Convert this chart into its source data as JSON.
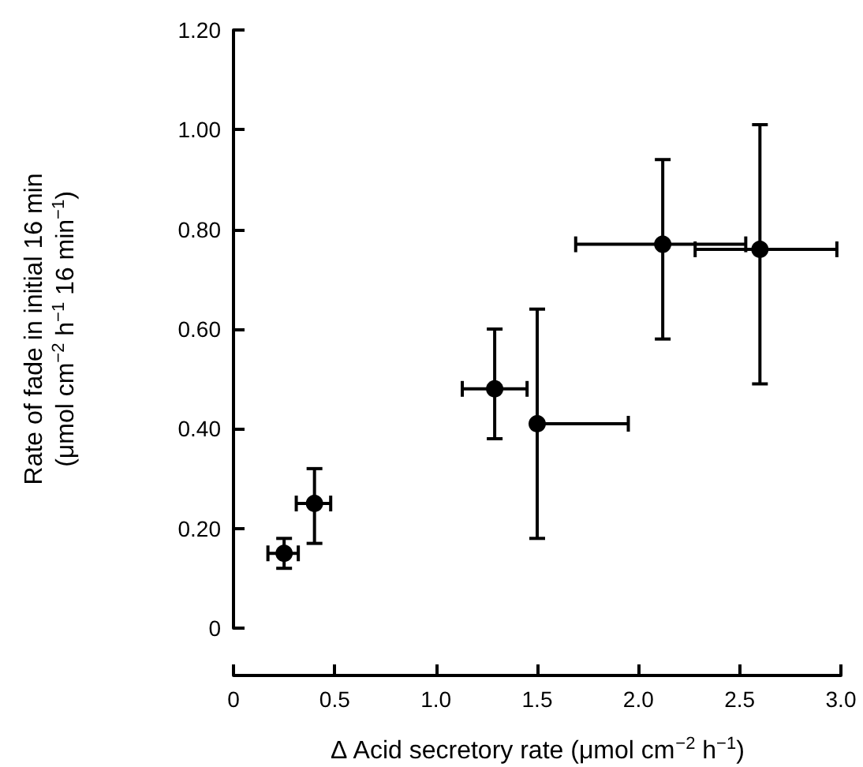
{
  "chart_data": {
    "type": "scatter",
    "xlabel": "Δ Acid secretory rate (μmol cm$^{−2}$ h$^{−1}$)",
    "ylabel": "Rate of fade in initial 16 min\n(μmol cm$^{−2}$ h$^{−1}$ 16 min$^{−1}$)",
    "series": [
      {
        "color": "#000000",
        "x": [
          0.25,
          0.4,
          1.29,
          1.5,
          2.12,
          2.6
        ],
        "values": [
          0.15,
          0.25,
          0.48,
          0.41,
          0.77,
          0.76
        ],
        "errors": [
          [
            0.12,
            0.18
          ],
          [
            0.17,
            0.32
          ],
          [
            0.38,
            0.6
          ],
          [
            0.18,
            0.64
          ],
          [
            0.58,
            0.94
          ],
          [
            0.49,
            1.01
          ]
        ],
        "xerrors": [
          [
            0.17,
            0.32
          ],
          [
            0.31,
            0.48
          ],
          [
            1.13,
            1.45
          ],
          [
            1.5,
            1.95
          ],
          [
            1.69,
            2.53
          ],
          [
            2.28,
            2.98
          ]
        ]
      }
    ],
    "xlim": [
      0,
      3
    ],
    "xticks": [
      0,
      {
        "value": 0.5,
        "label": "0.5"
      },
      {
        "value": 1,
        "label": "1.0"
      },
      {
        "value": 1.5,
        "label": "1.5"
      },
      {
        "value": 2,
        "label": "2.0"
      },
      {
        "value": 2.5,
        "label": "2.5"
      },
      {
        "value": 3,
        "label": "3.0"
      }
    ],
    "ylim": [
      0,
      1.2
    ],
    "yticks": [
      0,
      {
        "value": 0.2,
        "label": "0.20"
      },
      {
        "value": 0.4,
        "label": "0.40"
      },
      {
        "value": 0.6,
        "label": "0.60"
      },
      {
        "value": 0.8,
        "label": "0.80"
      },
      {
        "value": 1,
        "label": "1.00"
      },
      {
        "value": 1.2,
        "label": "1.20"
      }
    ],
    "grid": false,
    "marker": "circle"
  }
}
